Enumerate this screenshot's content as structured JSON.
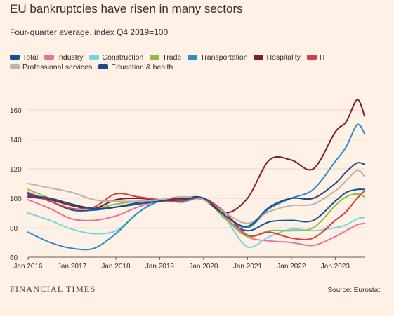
{
  "header": {
    "title": "EU bankruptcies have risen in many sectors",
    "subtitle": "Four-quarter average, index Q4 2019=100"
  },
  "footer": {
    "brand": "FINANCIAL TIMES",
    "source": "Source: Eurostat"
  },
  "chart_data": {
    "type": "line",
    "title": "EU bankruptcies have risen in many sectors",
    "subtitle": "Four-quarter average, index Q4 2019=100",
    "xlabel": "",
    "ylabel": "",
    "x_ticks": [
      "Jan 2016",
      "Jan 2017",
      "Jan 2018",
      "Jan 2019",
      "Jan 2020",
      "Jan 2021",
      "Jan 2022",
      "Jan 2023"
    ],
    "x_range": [
      "2016-01",
      "2023-09"
    ],
    "y_ticks": [
      60,
      80,
      100,
      120,
      140,
      160
    ],
    "ylim": [
      60,
      170
    ],
    "grid": "horizontal",
    "legend_position": "top",
    "x": [
      "2016-01",
      "2016-07",
      "2017-01",
      "2017-07",
      "2018-01",
      "2018-07",
      "2019-01",
      "2019-07",
      "2020-01",
      "2020-07",
      "2021-01",
      "2021-07",
      "2022-01",
      "2022-07",
      "2023-01",
      "2023-04",
      "2023-07",
      "2023-09"
    ],
    "series": [
      {
        "name": "Total",
        "color": "#0f5499",
        "values": [
          103,
          98,
          92,
          92,
          94,
          97,
          99,
          100,
          100,
          86,
          78,
          84,
          85,
          85,
          98,
          104,
          106,
          106
        ]
      },
      {
        "name": "Industry",
        "color": "#e8729a",
        "values": [
          99,
          93,
          86,
          85,
          88,
          94,
          98,
          98,
          100,
          87,
          74,
          71,
          70,
          68,
          74,
          78,
          82,
          83
        ]
      },
      {
        "name": "Construction",
        "color": "#73d6e6",
        "values": [
          90,
          85,
          79,
          76,
          78,
          90,
          99,
          97,
          100,
          86,
          67,
          74,
          79,
          78,
          80,
          82,
          86,
          87
        ]
      },
      {
        "name": "Trade",
        "color": "#96bb45",
        "values": [
          106,
          100,
          95,
          93,
          96,
          98,
          99,
          99,
          99,
          86,
          74,
          78,
          78,
          80,
          95,
          101,
          103,
          101
        ]
      },
      {
        "name": "Transportation",
        "color": "#2a8ccf",
        "values": [
          77,
          70,
          66,
          66,
          76,
          90,
          98,
          98,
          100,
          88,
          80,
          93,
          100,
          106,
          125,
          135,
          150,
          144
        ]
      },
      {
        "name": "Hospitality",
        "color": "#7d1c33",
        "values": [
          101,
          99,
          95,
          93,
          99,
          100,
          99,
          100,
          99,
          90,
          100,
          126,
          126,
          120,
          145,
          152,
          167,
          156
        ]
      },
      {
        "name": "IT",
        "color": "#d0404a",
        "values": [
          104,
          98,
          93,
          94,
          103,
          101,
          99,
          98,
          100,
          90,
          75,
          77,
          73,
          73,
          85,
          91,
          100,
          105
        ]
      },
      {
        "name": "Professional services",
        "color": "#bfb2a8",
        "values": [
          110,
          107,
          104,
          99,
          98,
          98,
          99,
          101,
          99,
          90,
          83,
          91,
          95,
          96,
          105,
          112,
          119,
          115
        ]
      },
      {
        "name": "Education & health",
        "color": "#1e4a82",
        "values": [
          102,
          100,
          96,
          93,
          94,
          96,
          98,
          99,
          100,
          88,
          81,
          94,
          100,
          100,
          110,
          118,
          124,
          123
        ]
      }
    ]
  }
}
